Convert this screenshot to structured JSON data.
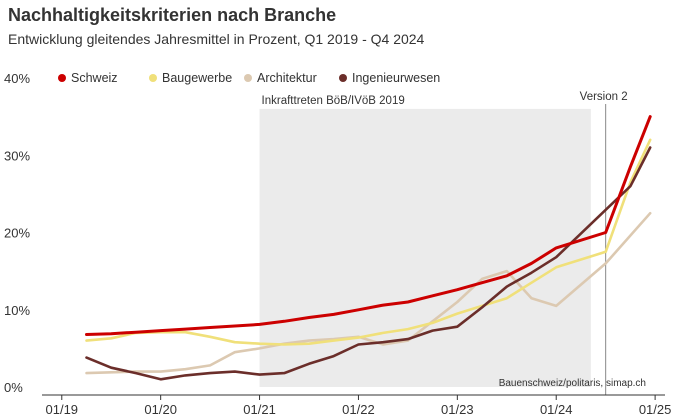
{
  "chart_data": {
    "type": "line",
    "title": "Nachhaltigkeitskriterien nach Branche",
    "subtitle": "Entwicklung gleitendes Jahresmittel in Prozent, Q1 2019 - Q4 2024",
    "source": "Bauenschweiz/politaris, simap.ch",
    "x": [
      2019.25,
      2019.5,
      2019.75,
      2020.0,
      2020.25,
      2020.5,
      2020.75,
      2021.0,
      2021.25,
      2021.5,
      2021.75,
      2022.0,
      2022.25,
      2022.5,
      2022.75,
      2023.0,
      2023.25,
      2023.5,
      2023.75,
      2024.0,
      2024.25,
      2024.5,
      2024.75,
      2025.0
    ],
    "x_ticks": [
      {
        "label": "01/19",
        "value": 2019.0
      },
      {
        "label": "01/20",
        "value": 2020.0
      },
      {
        "label": "01/21",
        "value": 2021.0
      },
      {
        "label": "01/22",
        "value": 2022.0
      },
      {
        "label": "01/23",
        "value": 2023.0
      },
      {
        "label": "01/24",
        "value": 2024.0
      },
      {
        "label": "01/25",
        "value": 2025.0
      }
    ],
    "y_ticks": [
      {
        "label": "0%",
        "value": 0
      },
      {
        "label": "10%",
        "value": 10
      },
      {
        "label": "20%",
        "value": 20
      },
      {
        "label": "30%",
        "value": 30
      },
      {
        "label": "40%",
        "value": 40
      }
    ],
    "xlim": [
      2018.8,
      2025.1
    ],
    "ylim": [
      0,
      40
    ],
    "series": [
      {
        "name": "Schweiz",
        "color": "#cc0000",
        "values": [
          6.8,
          6.9,
          7.1,
          7.3,
          7.5,
          7.7,
          7.9,
          8.1,
          8.5,
          9.0,
          9.4,
          10.0,
          10.6,
          11.0,
          11.8,
          12.6,
          13.5,
          14.4,
          16.0,
          18.0,
          20.0,
          28.5,
          35.0,
          null
        ]
      },
      {
        "name": "Baugewerbe",
        "color": "#f0e07a",
        "values": [
          6.0,
          6.3,
          7.0,
          7.1,
          7.1,
          6.5,
          5.8,
          5.6,
          5.5,
          5.6,
          6.0,
          6.4,
          7.0,
          7.5,
          8.3,
          9.5,
          10.5,
          11.5,
          13.5,
          15.5,
          17.5,
          26.5,
          32.0,
          null
        ]
      },
      {
        "name": "Architektur",
        "color": "#dcc9b1",
        "values": [
          1.8,
          1.9,
          2.0,
          2.0,
          2.3,
          2.8,
          4.5,
          5.0,
          5.6,
          6.0,
          6.2,
          6.5,
          5.5,
          6.0,
          8.5,
          11.0,
          14.0,
          15.0,
          11.5,
          10.5,
          16.0,
          22.5,
          null,
          null
        ]
      },
      {
        "name": "Ingenieurwesen",
        "color": "#6b2e2a",
        "values": [
          3.8,
          2.5,
          1.8,
          1.0,
          1.5,
          1.8,
          2.0,
          1.6,
          1.8,
          3.0,
          4.0,
          5.5,
          5.8,
          6.2,
          7.3,
          7.8,
          10.3,
          13.0,
          14.8,
          16.8,
          26.0,
          31.0,
          null,
          null
        ]
      }
    ],
    "series_x": [
      [
        2019.25,
        2019.5,
        2019.75,
        2020.0,
        2020.25,
        2020.5,
        2020.75,
        2021.0,
        2021.25,
        2021.5,
        2021.75,
        2022.0,
        2022.25,
        2022.5,
        2022.75,
        2023.0,
        2023.25,
        2023.5,
        2023.75,
        2024.0,
        2024.5,
        2024.75,
        2024.95
      ],
      [
        2019.25,
        2019.5,
        2019.75,
        2020.0,
        2020.25,
        2020.5,
        2020.75,
        2021.0,
        2021.25,
        2021.5,
        2021.75,
        2022.0,
        2022.25,
        2022.5,
        2022.75,
        2023.0,
        2023.25,
        2023.5,
        2023.75,
        2024.0,
        2024.5,
        2024.75,
        2024.95
      ],
      [
        2019.25,
        2019.5,
        2019.75,
        2020.0,
        2020.25,
        2020.5,
        2020.75,
        2021.0,
        2021.25,
        2021.5,
        2021.75,
        2022.0,
        2022.25,
        2022.5,
        2022.75,
        2023.0,
        2023.25,
        2023.5,
        2023.75,
        2024.0,
        2024.5,
        2024.95
      ],
      [
        2019.25,
        2019.5,
        2019.75,
        2020.0,
        2020.25,
        2020.5,
        2020.75,
        2021.0,
        2021.25,
        2021.5,
        2021.75,
        2022.0,
        2022.25,
        2022.5,
        2022.75,
        2023.0,
        2023.25,
        2023.5,
        2023.75,
        2024.0,
        2024.75,
        2024.95
      ]
    ],
    "annotations": [
      {
        "id": "shade",
        "text": "Inkrafttreten BöB/IVöB 2019",
        "x_start": 2021.0,
        "x_end": 2024.35,
        "y_start": 0,
        "y_end": 36
      },
      {
        "id": "version",
        "text": "Version 2",
        "x": 2024.5
      }
    ],
    "legend_position": "top-left",
    "grid": false
  }
}
